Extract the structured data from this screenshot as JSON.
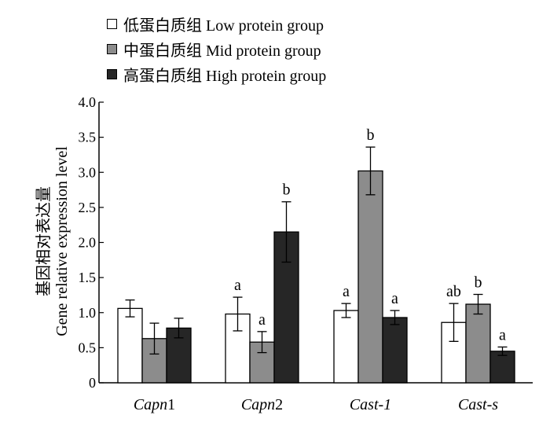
{
  "chart_data": {
    "type": "bar",
    "categories": [
      "Capn1",
      "Capn2",
      "Cast-1",
      "Cast-s"
    ],
    "category_display": [
      {
        "italic": "Capn",
        "plain": "1"
      },
      {
        "italic": "Capn",
        "plain": "2"
      },
      {
        "italic": "Cast-1",
        "plain": ""
      },
      {
        "italic": "Cast-s",
        "plain": ""
      }
    ],
    "ylabel_cn": "基因相对表达量",
    "ylabel_en": "Gene relative expression level",
    "ylim": [
      0,
      4.0
    ],
    "yticks": [
      "0",
      "0.5",
      "1.0",
      "1.5",
      "2.0",
      "2.5",
      "3.0",
      "3.5",
      "4.0"
    ],
    "legend_position": "top-left",
    "grid": false,
    "series": [
      {
        "name": "低蛋白质组 Low protein group",
        "color": "#ffffff",
        "values": [
          1.06,
          0.98,
          1.03,
          0.86
        ],
        "errors": [
          0.12,
          0.24,
          0.1,
          0.27
        ],
        "labels": [
          "",
          "a",
          "a",
          "ab"
        ]
      },
      {
        "name": "中蛋白质组 Mid protein group",
        "color": "#8c8c8c",
        "values": [
          0.63,
          0.58,
          3.02,
          1.12
        ],
        "errors": [
          0.22,
          0.15,
          0.34,
          0.14
        ],
        "labels": [
          "",
          "a",
          "b",
          "b"
        ]
      },
      {
        "name": "高蛋白质组 High protein group",
        "color": "#262626",
        "values": [
          0.78,
          2.15,
          0.93,
          0.45
        ],
        "errors": [
          0.14,
          0.43,
          0.1,
          0.06
        ],
        "labels": [
          "",
          "b",
          "a",
          "a"
        ]
      }
    ]
  }
}
